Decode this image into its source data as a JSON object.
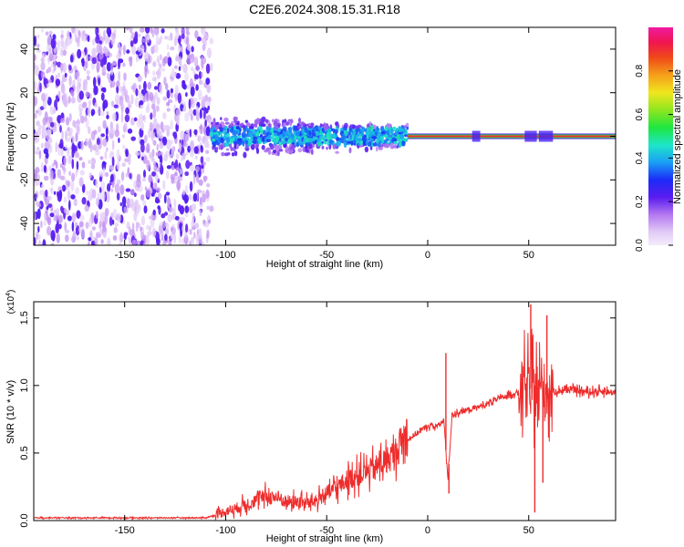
{
  "title": "C2E6.2024.308.15.31.R18",
  "chart_data": [
    {
      "type": "heatmap",
      "xlabel": "Height of straight line (km)",
      "ylabel": "Frequency (Hz)",
      "xlim": [
        -195,
        93
      ],
      "ylim": [
        -50,
        50
      ],
      "x_ticks": [
        "-150",
        "-100",
        "-50",
        "0",
        "50"
      ],
      "x_tick_values": [
        -150,
        -100,
        -50,
        0,
        50
      ],
      "y_ticks": [
        "-40",
        "-20",
        "0",
        "20",
        "40"
      ],
      "y_tick_values": [
        -40,
        -20,
        0,
        20,
        40
      ],
      "colorbar": {
        "label": "Normalized spectral amplitude",
        "range": [
          0,
          1
        ],
        "ticks": [
          "0.0",
          "0.2",
          "0.4",
          "0.6",
          "0.8"
        ],
        "tick_values": [
          0,
          0.2,
          0.4,
          0.6,
          0.8
        ]
      },
      "regions": [
        {
          "x": [
            -195,
            -107
          ],
          "freq_spread": [
            -50,
            50
          ],
          "amplitude": [
            0.02,
            0.15
          ]
        },
        {
          "x": [
            -107,
            -10
          ],
          "freq_spread": [
            -10,
            10
          ],
          "amplitude": [
            0.15,
            0.45
          ]
        },
        {
          "x": [
            -10,
            93
          ],
          "freq_spread": [
            -1,
            1
          ],
          "amplitude": [
            0.85,
            1.0
          ]
        }
      ]
    },
    {
      "type": "line",
      "xlabel": "Height of straight line (km)",
      "ylabel": "SNR (10 * v/v)",
      "y_multiplier": "(x10",
      "y_multiplier_exp": "4",
      "y_multiplier_close": ")",
      "xlim": [
        -195,
        93
      ],
      "ylim": [
        0,
        1.62
      ],
      "x_ticks": [
        "-150",
        "-100",
        "-50",
        "0",
        "50"
      ],
      "x_tick_values": [
        -150,
        -100,
        -50,
        0,
        50
      ],
      "y_ticks": [
        "0.0",
        "0.5",
        "1.0",
        "1.5"
      ],
      "y_tick_values": [
        0,
        0.5,
        1.0,
        1.5
      ],
      "color": "#ee2c2c",
      "series": [
        {
          "x": [
            -195,
            -180,
            -160,
            -140,
            -120,
            -110,
            -105,
            -100,
            -95,
            -90,
            -85,
            -80,
            -75,
            -70,
            -65,
            -60,
            -55,
            -50,
            -45,
            -40,
            -35,
            -30,
            -25,
            -20,
            -15,
            -12,
            -10,
            -5,
            0,
            5,
            8,
            10,
            12,
            15,
            20,
            25,
            30,
            35,
            40,
            45,
            50,
            55,
            60,
            65,
            70,
            75,
            80,
            85,
            90,
            93
          ],
          "y": [
            0.02,
            0.02,
            0.02,
            0.02,
            0.02,
            0.02,
            0.04,
            0.07,
            0.09,
            0.12,
            0.15,
            0.18,
            0.17,
            0.14,
            0.14,
            0.13,
            0.15,
            0.2,
            0.24,
            0.3,
            0.33,
            0.36,
            0.4,
            0.45,
            0.52,
            0.6,
            0.6,
            0.65,
            0.7,
            0.7,
            0.74,
            0.3,
            0.78,
            0.8,
            0.82,
            0.84,
            0.87,
            0.9,
            0.93,
            0.95,
            0.98,
            0.96,
            0.95,
            0.96,
            0.97,
            0.96,
            0.95,
            0.96,
            0.95,
            0.95
          ]
        }
      ],
      "spikes": [
        {
          "x": 9,
          "y": 1.24
        },
        {
          "x": 10.5,
          "y": 0.2
        },
        {
          "x": 51,
          "y": 1.6
        },
        {
          "x": 53,
          "y": 0.06
        },
        {
          "x": 59,
          "y": 1.52
        },
        {
          "x": 57,
          "y": 0.28
        }
      ]
    }
  ]
}
